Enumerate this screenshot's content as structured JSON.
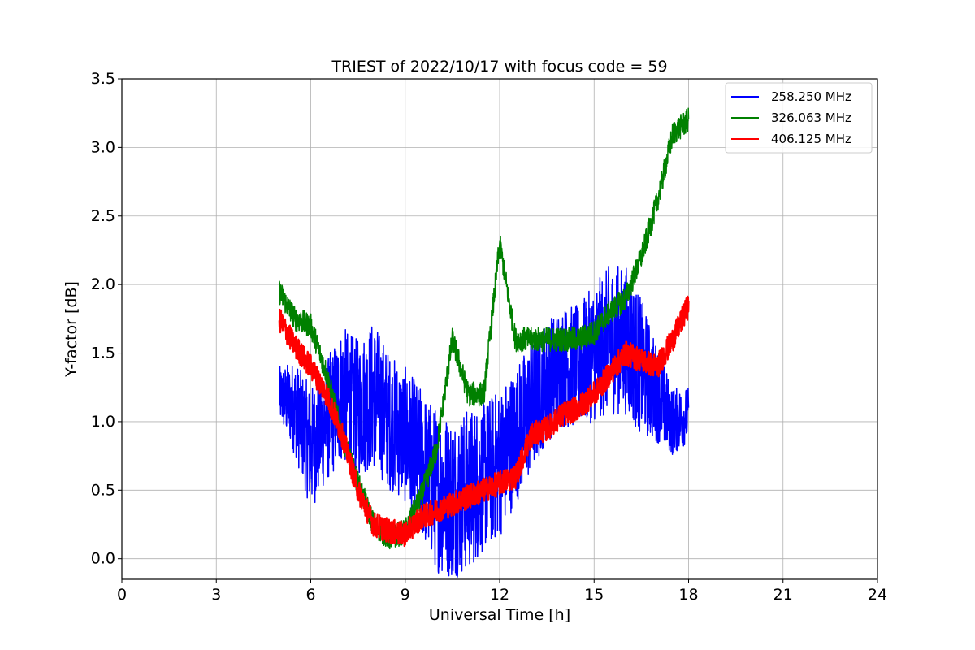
{
  "chart_data": {
    "type": "line",
    "title": "TRIEST of 2022/10/17 with focus code = 59",
    "xlabel": "Universal Time [h]",
    "ylabel": "Y-factor [dB]",
    "xlim": [
      0,
      24
    ],
    "ylim": [
      -0.15,
      3.5
    ],
    "xticks": [
      0,
      3,
      6,
      9,
      12,
      15,
      18,
      21,
      24
    ],
    "yticks": [
      0.0,
      0.5,
      1.0,
      1.5,
      2.0,
      2.5,
      3.0,
      3.5
    ],
    "ytick_labels": [
      "0.0",
      "0.5",
      "1.0",
      "1.5",
      "2.0",
      "2.5",
      "3.0",
      "3.5"
    ],
    "grid": true,
    "legend_position": "top-right",
    "series": [
      {
        "name": "258.250 MHz",
        "color": "#0000ff",
        "x": [
          5.0,
          5.5,
          6.0,
          6.5,
          7.0,
          7.5,
          8.0,
          8.5,
          9.0,
          9.5,
          10.0,
          10.5,
          11.0,
          11.5,
          12.0,
          12.5,
          13.0,
          13.5,
          14.0,
          14.5,
          15.0,
          15.5,
          16.0,
          16.5,
          17.0,
          17.5,
          18.0
        ],
        "values": [
          1.2,
          1.1,
          0.8,
          1.0,
          1.2,
          1.1,
          1.2,
          1.0,
          0.9,
          0.7,
          0.5,
          0.45,
          0.5,
          0.6,
          0.7,
          0.9,
          1.1,
          1.3,
          1.4,
          1.4,
          1.5,
          1.6,
          1.6,
          1.4,
          1.2,
          1.0,
          1.05
        ],
        "spread": [
          0.2,
          0.35,
          0.45,
          0.45,
          0.5,
          0.5,
          0.55,
          0.5,
          0.5,
          0.55,
          0.6,
          0.6,
          0.6,
          0.55,
          0.55,
          0.5,
          0.5,
          0.45,
          0.45,
          0.45,
          0.5,
          0.55,
          0.55,
          0.5,
          0.35,
          0.25,
          0.2
        ]
      },
      {
        "name": "326.063 MHz",
        "color": "#008000",
        "x": [
          5.0,
          5.5,
          6.0,
          6.5,
          7.0,
          7.5,
          8.0,
          8.5,
          9.0,
          9.5,
          10.0,
          10.5,
          11.0,
          11.5,
          12.0,
          12.5,
          13.0,
          13.5,
          14.0,
          14.5,
          15.0,
          15.5,
          16.0,
          16.5,
          17.0,
          17.5,
          18.0
        ],
        "values": [
          1.95,
          1.75,
          1.7,
          1.35,
          0.9,
          0.55,
          0.25,
          0.15,
          0.2,
          0.45,
          0.8,
          1.6,
          1.2,
          1.2,
          2.3,
          1.6,
          1.6,
          1.6,
          1.6,
          1.6,
          1.65,
          1.8,
          1.9,
          2.2,
          2.6,
          3.1,
          3.2
        ]
      },
      {
        "name": "406.125 MHz",
        "color": "#ff0000",
        "x": [
          5.0,
          5.5,
          6.0,
          6.5,
          7.0,
          7.5,
          8.0,
          8.5,
          9.0,
          9.5,
          10.0,
          10.5,
          11.0,
          11.5,
          12.0,
          12.5,
          13.0,
          13.5,
          14.0,
          14.5,
          15.0,
          15.5,
          16.0,
          16.5,
          17.0,
          17.5,
          18.0
        ],
        "values": [
          1.75,
          1.55,
          1.4,
          1.2,
          0.9,
          0.5,
          0.25,
          0.2,
          0.18,
          0.3,
          0.35,
          0.4,
          0.45,
          0.5,
          0.55,
          0.6,
          0.9,
          0.95,
          1.05,
          1.1,
          1.2,
          1.35,
          1.5,
          1.45,
          1.4,
          1.6,
          1.85
        ]
      }
    ]
  }
}
